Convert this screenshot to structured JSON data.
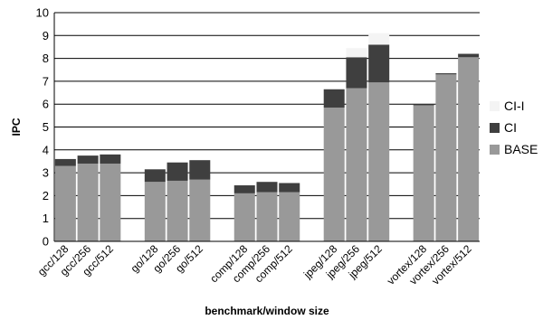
{
  "chart_data": {
    "type": "bar",
    "stacked": true,
    "xlabel": "benchmark/window size",
    "ylabel": "IPC",
    "ylim": [
      0,
      10
    ],
    "yticks": [
      0,
      1,
      2,
      3,
      4,
      5,
      6,
      7,
      8,
      9,
      10
    ],
    "grid": "horizontal",
    "legend_position": "right",
    "categories": [
      "gcc/128",
      "gcc/256",
      "gcc/512",
      "go/128",
      "go/256",
      "go/512",
      "comp/128",
      "comp/256",
      "comp/512",
      "jpeg/128",
      "jpeg/256",
      "jpeg/512",
      "vortex/128",
      "vortex/256",
      "vortex/512"
    ],
    "groups": [
      3,
      3,
      3,
      3,
      3
    ],
    "series": [
      {
        "name": "BASE",
        "color": "#999999",
        "values": [
          3.3,
          3.4,
          3.4,
          2.6,
          2.65,
          2.7,
          2.1,
          2.15,
          2.15,
          5.85,
          6.7,
          6.95,
          5.95,
          7.3,
          8.05
        ]
      },
      {
        "name": "CI",
        "color": "#3f3f3f",
        "values": [
          0.3,
          0.35,
          0.4,
          0.55,
          0.8,
          0.85,
          0.35,
          0.45,
          0.4,
          0.8,
          1.35,
          1.65,
          0.05,
          0.05,
          0.15
        ]
      },
      {
        "name": "CI-I",
        "color": "#f4f4f4",
        "values": [
          0.0,
          0.0,
          0.0,
          0.0,
          0.0,
          0.0,
          0.0,
          0.0,
          0.0,
          0.0,
          0.4,
          0.5,
          0.0,
          0.0,
          0.0
        ]
      }
    ]
  }
}
